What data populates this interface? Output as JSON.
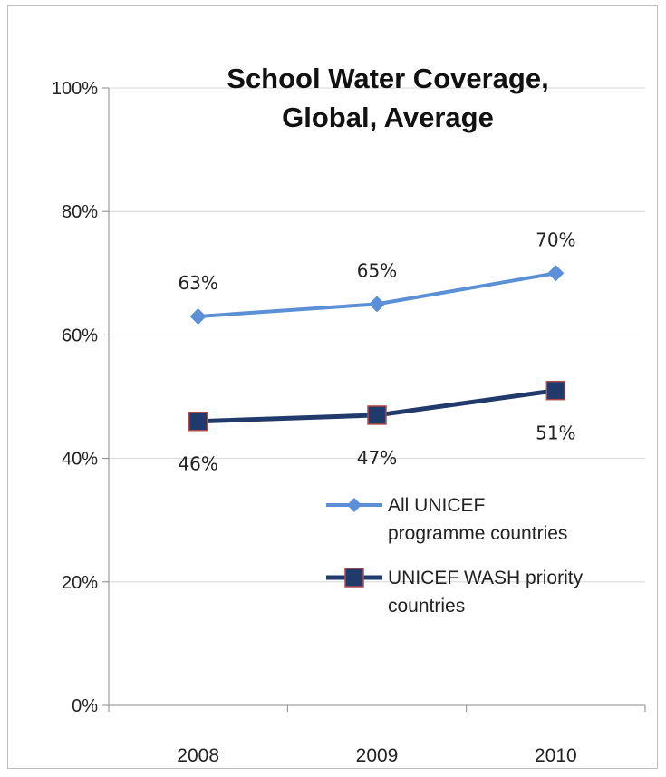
{
  "chart_data": {
    "type": "line",
    "title": [
      "School Water Coverage,",
      "Global, Average"
    ],
    "categories": [
      "2008",
      "2009",
      "2010"
    ],
    "ylim": [
      0,
      100
    ],
    "yticks": [
      "0%",
      "20%",
      "40%",
      "60%",
      "80%",
      "100%"
    ],
    "grid": true,
    "legend_position": "right",
    "series": [
      {
        "name": [
          "All UNICEF",
          "programme countries"
        ],
        "values": [
          63,
          65,
          70
        ],
        "data_labels": [
          "63%",
          "65%",
          "70%"
        ],
        "color": "#5b8fd6",
        "marker": "diamond",
        "label_position": "above"
      },
      {
        "name": [
          "UNICEF  WASH priority",
          "countries"
        ],
        "values": [
          46,
          47,
          51
        ],
        "data_labels": [
          "46%",
          "47%",
          "51%"
        ],
        "color": "#1f3a6b",
        "marker_stroke": "#b04a4a",
        "marker": "square",
        "label_position": "below"
      }
    ]
  }
}
